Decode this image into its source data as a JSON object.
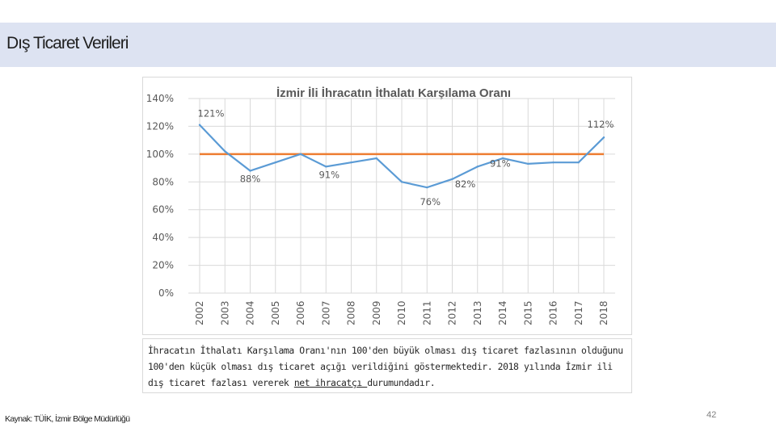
{
  "slide": {
    "title": "Dış Ticaret Verileri",
    "source": "Kaynak: TÜİK, İzmir Bölge Müdürlüğü",
    "page_number": "42"
  },
  "note": {
    "part1": "İhracatın İthalatı Karşılama Oranı'nın 100'den büyük olması dış ticaret fazlasının olduğunu 100'den küçük olması dış ticaret açığı verildiğini göstermektedir. 2018 yılında İzmir ili dış ticaret fazlası vererek ",
    "underlined": "net ihracatçı ",
    "part2": "durumundadır."
  },
  "colors": {
    "line": "#5b9bd5",
    "reference": "#ed7d31",
    "title": "#595959",
    "label": "#595959",
    "grid": "#d9d9d9",
    "header_band": "#dde3f2"
  },
  "chart_data": {
    "type": "line",
    "title": "İzmir İli İhracatın İthalatı Karşılama Oranı",
    "xlabel": "",
    "ylabel": "",
    "ylim": [
      0,
      140
    ],
    "yticks": [
      0,
      20,
      40,
      60,
      80,
      100,
      120,
      140
    ],
    "ytick_labels": [
      "0%",
      "20%",
      "40%",
      "60%",
      "80%",
      "100%",
      "120%",
      "140%"
    ],
    "grid": true,
    "x": [
      "2002",
      "2003",
      "2004",
      "2005",
      "2006",
      "2007",
      "2008",
      "2009",
      "2010",
      "2011",
      "2012",
      "2013",
      "2014",
      "2015",
      "2016",
      "2017",
      "2018"
    ],
    "series": [
      {
        "values": [
          121,
          102,
          88,
          94,
          100,
          91,
          94,
          97,
          80,
          76,
          82,
          91,
          97,
          93,
          94,
          94,
          112
        ]
      }
    ],
    "reference_line": 100,
    "data_labels": [
      {
        "x": "2002",
        "text": "121%"
      },
      {
        "x": "2004",
        "text": "88%"
      },
      {
        "x": "2007",
        "text": "91%"
      },
      {
        "x": "2011",
        "text": "76%"
      },
      {
        "x": "2012",
        "text": "82%"
      },
      {
        "x": "2013",
        "text": "91%"
      },
      {
        "x": "2018",
        "text": "112%"
      }
    ]
  }
}
